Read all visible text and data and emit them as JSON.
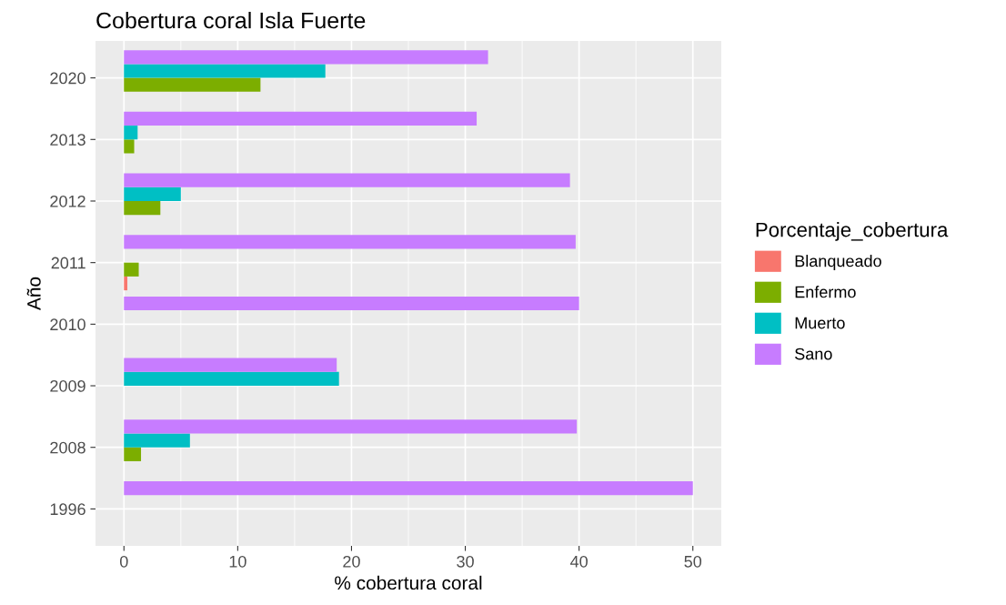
{
  "chart_data": {
    "type": "bar",
    "orientation": "horizontal",
    "title": "Cobertura coral Isla Fuerte",
    "xlabel": "% cobertura coral",
    "ylabel": "Año",
    "legend_title": "Porcentaje_cobertura",
    "categories": [
      "2020",
      "2013",
      "2012",
      "2011",
      "2010",
      "2009",
      "2008",
      "1996"
    ],
    "series": [
      {
        "name": "Blanqueado",
        "color": "#f8766d",
        "values": [
          null,
          null,
          null,
          0.3,
          null,
          null,
          null,
          null
        ]
      },
      {
        "name": "Enfermo",
        "color": "#7cae00",
        "values": [
          12,
          0.9,
          3.2,
          1.3,
          null,
          null,
          1.5,
          null
        ]
      },
      {
        "name": "Muerto",
        "color": "#00bfc4",
        "values": [
          17.7,
          1.2,
          5,
          null,
          null,
          18.9,
          5.8,
          null
        ]
      },
      {
        "name": "Sano",
        "color": "#c77cff",
        "values": [
          32,
          31,
          39.2,
          39.7,
          40,
          18.7,
          39.8,
          50
        ]
      }
    ],
    "xlim": [
      -2.5,
      52.5
    ],
    "xticks": [
      0,
      10,
      20,
      30,
      40,
      50
    ],
    "grid": true,
    "legend": "right"
  }
}
